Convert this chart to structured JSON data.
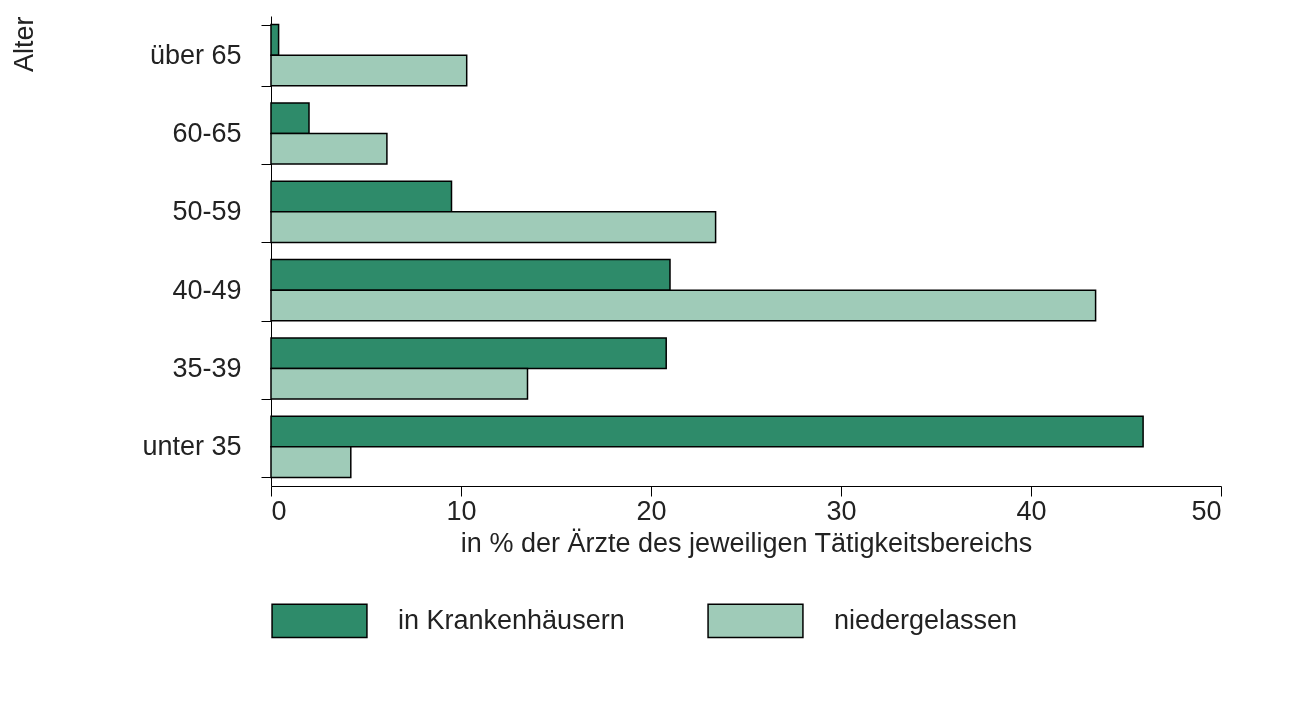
{
  "chart_data": {
    "type": "bar",
    "orientation": "horizontal",
    "xlabel": "in % der Ärzte des jeweiligen Tätigkeitsbereichs",
    "ylabel": "Alter",
    "categories": [
      "über 65",
      "60-65",
      "50-59",
      "40-49",
      "35-39",
      "unter 35"
    ],
    "series": [
      {
        "name": "in Krankenhäusern",
        "color": "#2e8b6a",
        "values": [
          0.4,
          2.0,
          9.5,
          21.0,
          20.8,
          45.9
        ]
      },
      {
        "name": "niedergelassen",
        "color": "#9fcbb8",
        "values": [
          10.3,
          6.1,
          23.4,
          43.4,
          13.5,
          4.2
        ]
      }
    ],
    "xlim": [
      0,
      50
    ],
    "xticks": [
      0,
      10,
      20,
      30,
      40,
      50
    ],
    "grid": false,
    "legend": "bottom"
  }
}
